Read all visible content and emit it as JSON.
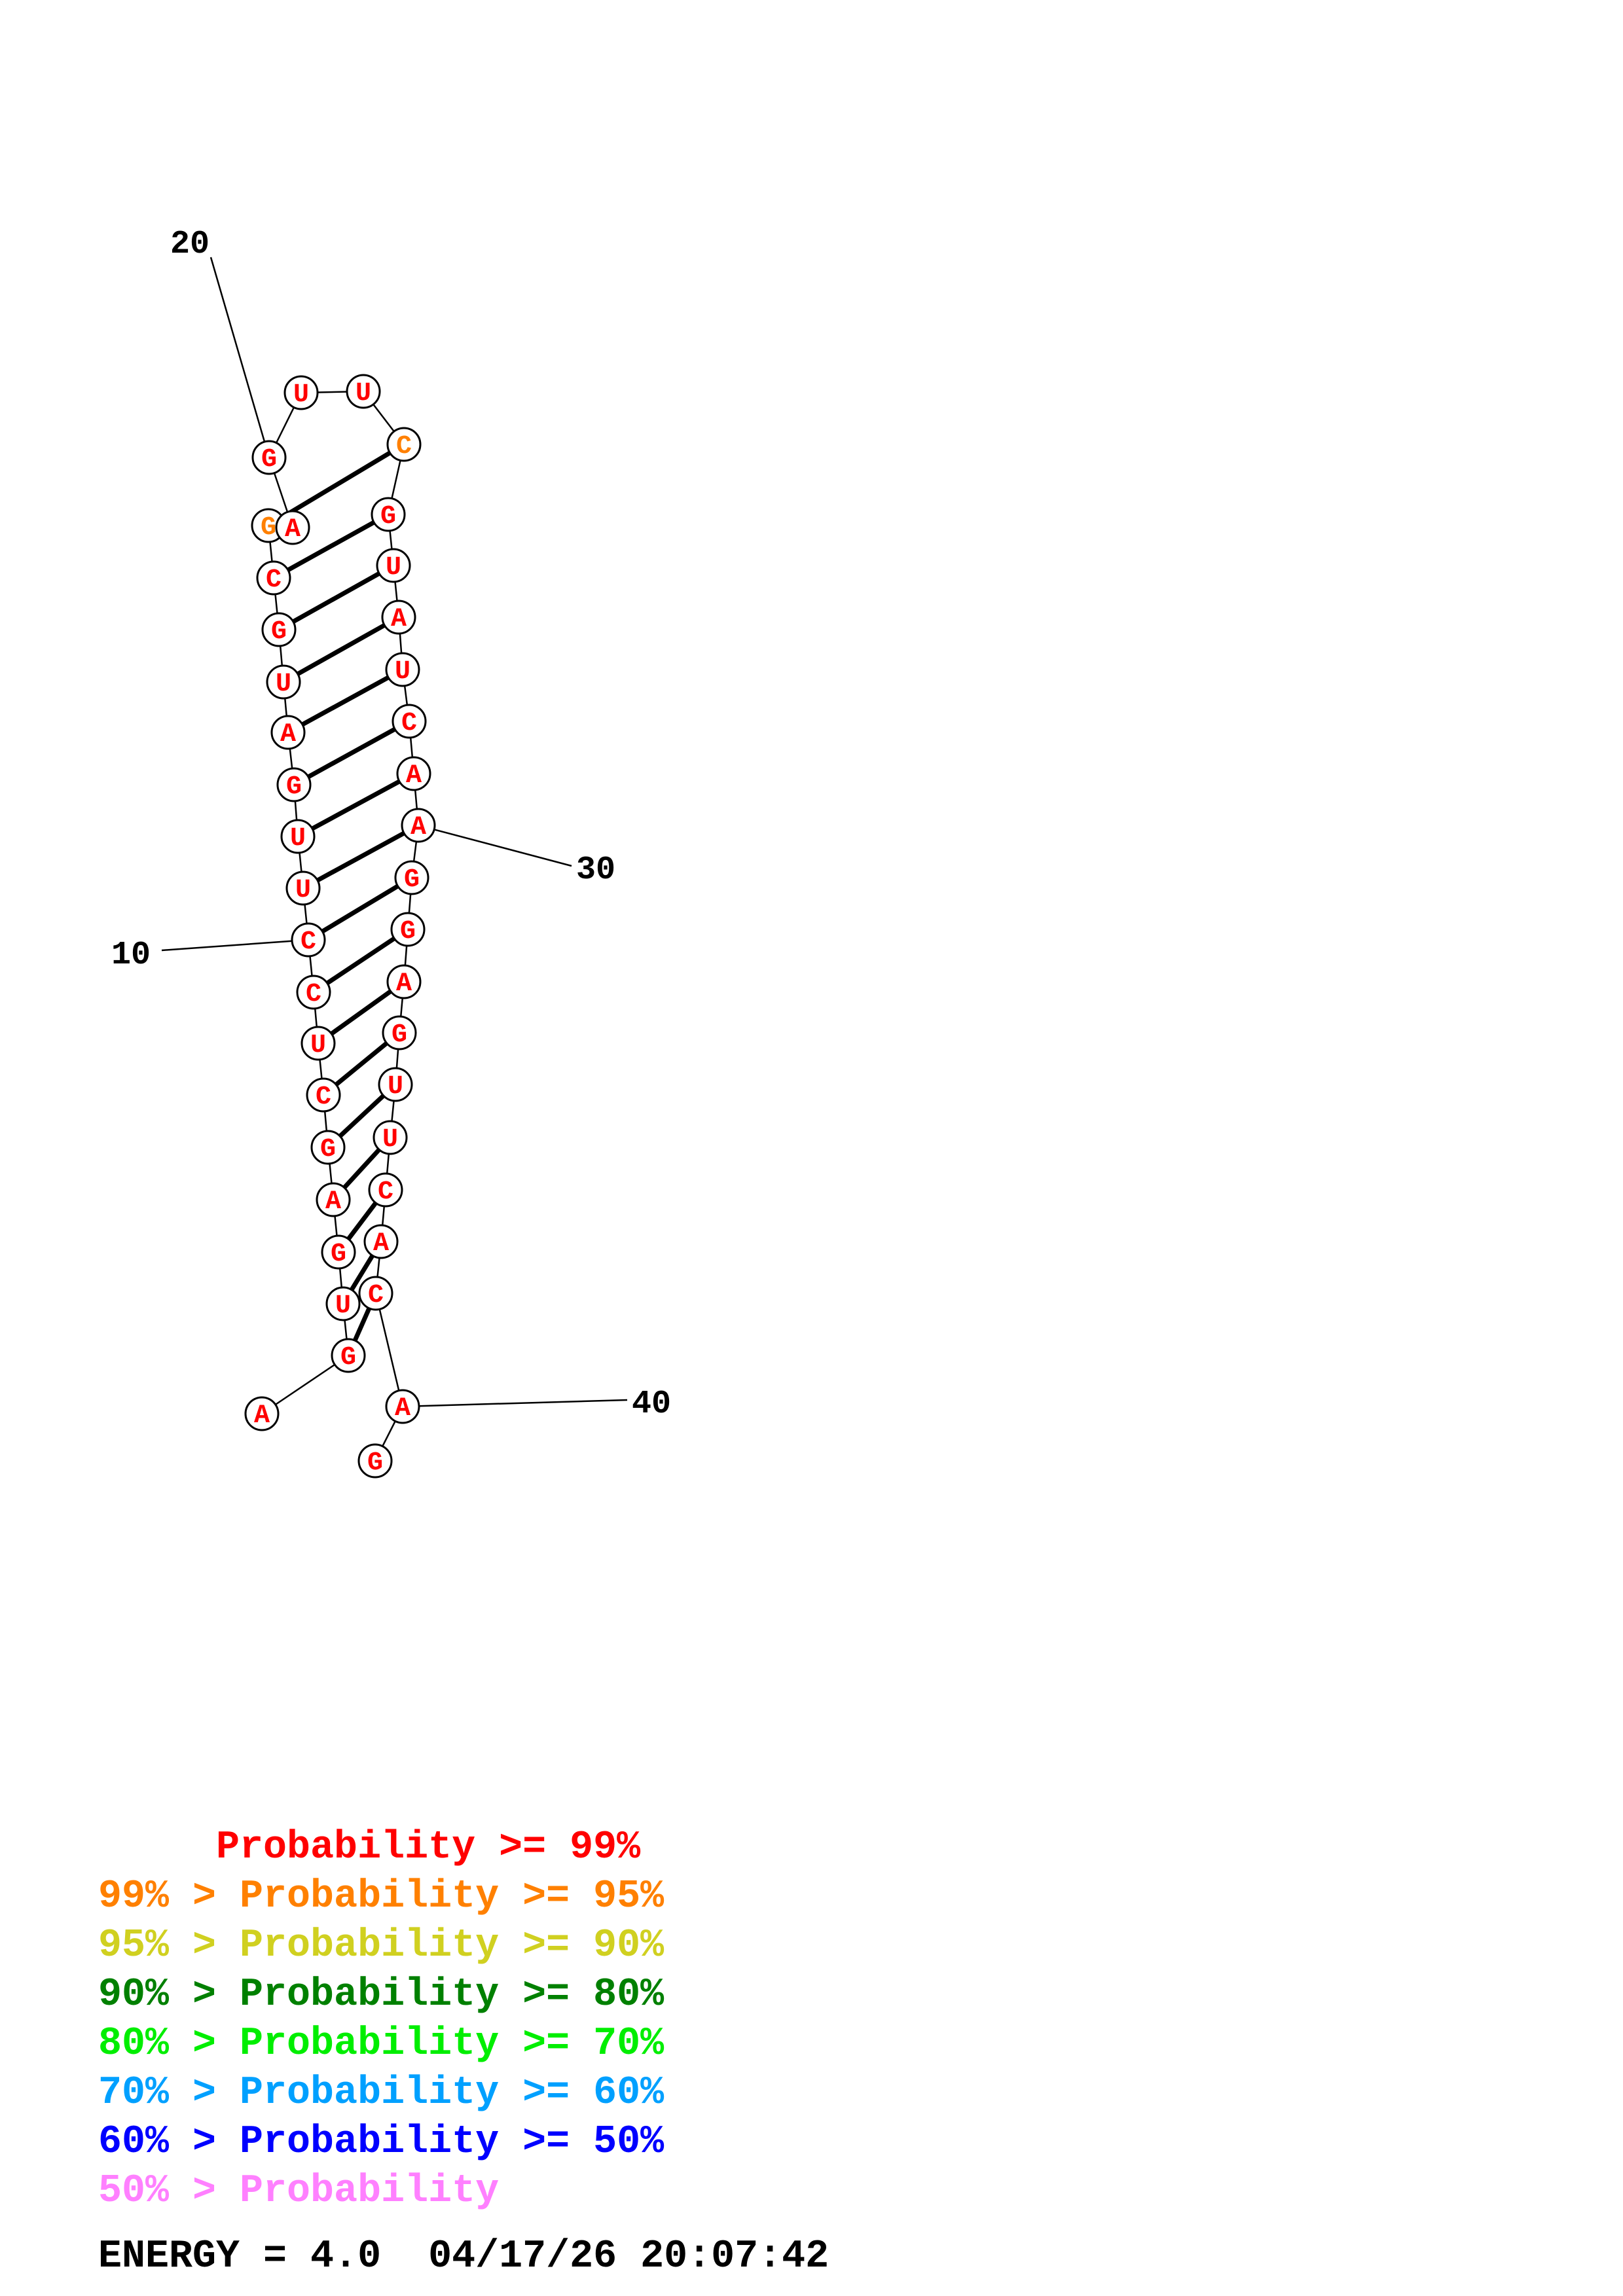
{
  "structure": {
    "sequence": [
      "A",
      "G",
      "U",
      "G",
      "A",
      "G",
      "C",
      "U",
      "C",
      "C",
      "U",
      "U",
      "G",
      "A",
      "U",
      "G",
      "C",
      "G",
      "A",
      "G",
      "U",
      "U",
      "C",
      "G",
      "U",
      "A",
      "U",
      "C",
      "A",
      "A",
      "G",
      "G",
      "A",
      "G",
      "U",
      "U",
      "C",
      "A",
      "C",
      "A",
      "G"
    ],
    "probability_class": [
      "red",
      "red",
      "red",
      "red",
      "red",
      "red",
      "red",
      "red",
      "red",
      "red",
      "red",
      "red",
      "red",
      "red",
      "red",
      "red",
      "red",
      "orange",
      "red",
      "red",
      "red",
      "red",
      "orange",
      "red",
      "red",
      "red",
      "red",
      "red",
      "red",
      "red",
      "red",
      "red",
      "red",
      "red",
      "red",
      "red",
      "red",
      "red",
      "red",
      "red",
      "red"
    ],
    "pairs": [
      [
        2,
        39
      ],
      [
        3,
        38
      ],
      [
        4,
        37
      ],
      [
        5,
        36
      ],
      [
        6,
        35
      ],
      [
        7,
        34
      ],
      [
        8,
        33
      ],
      [
        9,
        32
      ],
      [
        10,
        31
      ],
      [
        11,
        30
      ],
      [
        12,
        29
      ],
      [
        13,
        28
      ],
      [
        14,
        27
      ],
      [
        15,
        26
      ],
      [
        16,
        25
      ],
      [
        17,
        24
      ],
      [
        18,
        23
      ]
    ],
    "index_labels": [
      {
        "nt": 10,
        "text": "10"
      },
      {
        "nt": 20,
        "text": "20"
      },
      {
        "nt": 30,
        "text": "30"
      },
      {
        "nt": 40,
        "text": "40"
      }
    ]
  },
  "colors": {
    "red": "#ff0000",
    "orange": "#ff8000",
    "yellow": "#d0d020",
    "darkgreen": "#008000",
    "green": "#00ee00",
    "lightblue": "#00a0ff",
    "blue": "#0000ff",
    "pink": "#ff80ff"
  },
  "legend": [
    {
      "text": "     Probability >= 99%",
      "color": "red"
    },
    {
      "text": "99% > Probability >= 95%",
      "color": "orange"
    },
    {
      "text": "95% > Probability >= 90%",
      "color": "yellow"
    },
    {
      "text": "90% > Probability >= 80%",
      "color": "darkgreen"
    },
    {
      "text": "80% > Probability >= 70%",
      "color": "green"
    },
    {
      "text": "70% > Probability >= 60%",
      "color": "lightblue"
    },
    {
      "text": "60% > Probability >= 50%",
      "color": "blue"
    },
    {
      "text": "50% > Probability",
      "color": "pink"
    }
  ],
  "footer": {
    "energy_text": "ENERGY = 4.0  04/17/26 20:07:42"
  }
}
